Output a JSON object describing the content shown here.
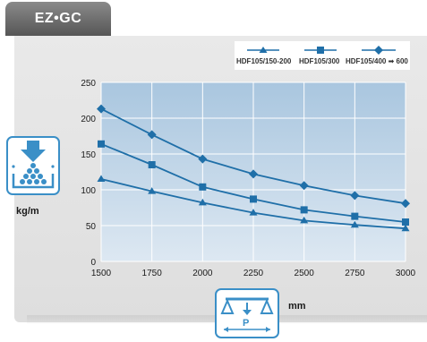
{
  "brand": {
    "label": "EZ•GC"
  },
  "icons": {
    "load": "load-weight-icon",
    "span": "beam-span-icon"
  },
  "colors": {
    "series": "#1f6fa8",
    "plot_top": "#aac7e0",
    "plot_bottom": "#dbe7f1",
    "icon_border": "#3a8fc7"
  },
  "chart_data": {
    "type": "line",
    "x": [
      1500,
      1750,
      2000,
      2250,
      2500,
      2750,
      3000
    ],
    "series": [
      {
        "name": "HDF105/150-200",
        "marker": "triangle",
        "values": [
          115,
          98,
          82,
          68,
          57,
          51,
          46
        ]
      },
      {
        "name": "HDF105/300",
        "marker": "square",
        "values": [
          164,
          135,
          104,
          87,
          72,
          63,
          55
        ]
      },
      {
        "name": "HDF105/400 ➡ 600",
        "marker": "diamond",
        "values": [
          213,
          177,
          143,
          122,
          106,
          92,
          81
        ]
      }
    ],
    "xlim": [
      1500,
      3000
    ],
    "ylim": [
      0,
      250
    ],
    "xticks": [
      "1500",
      "1750",
      "2000",
      "2250",
      "2500",
      "2750",
      "3000"
    ],
    "yticks": [
      "0",
      "50",
      "100",
      "150",
      "200",
      "250"
    ],
    "xlabel": "mm",
    "ylabel": "kg/m",
    "grid": true,
    "legend": "top-right"
  }
}
